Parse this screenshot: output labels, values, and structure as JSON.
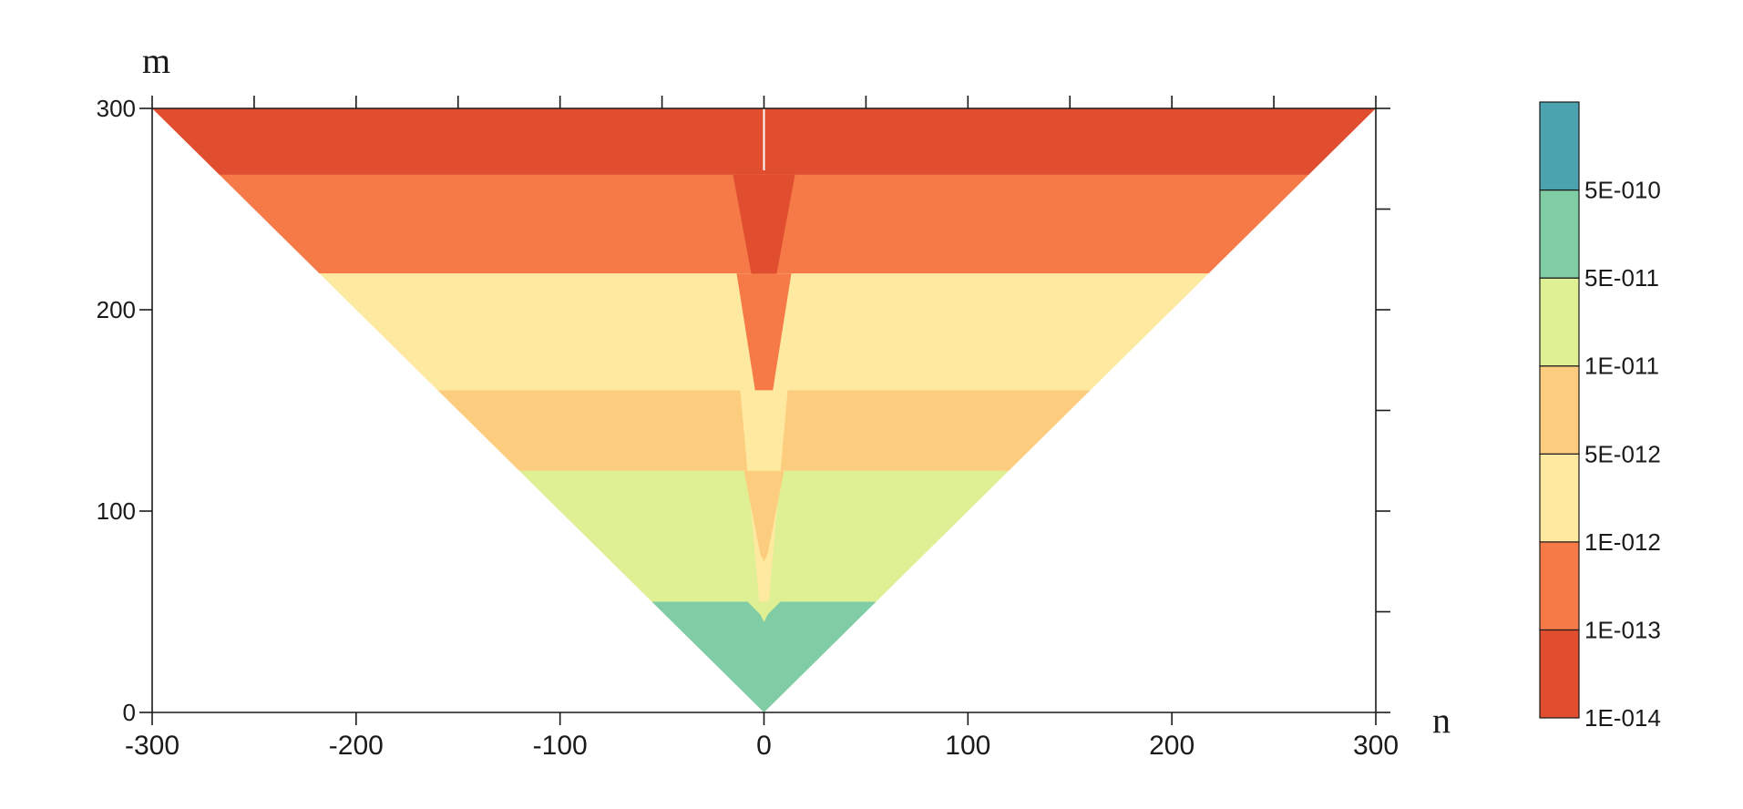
{
  "chart_data": {
    "type": "heatmap",
    "subtype": "filled-contour",
    "title": "",
    "xlabel": "n",
    "ylabel": "m",
    "xlim": [
      -300,
      300
    ],
    "ylim": [
      0,
      300
    ],
    "x_ticks": [
      -300,
      -200,
      -100,
      0,
      100,
      200,
      300
    ],
    "x_tick_labels": [
      "-300",
      "-200",
      "-100",
      "0",
      "100",
      "200",
      "300"
    ],
    "y_ticks": [
      0,
      100,
      200,
      300
    ],
    "y_tick_labels": [
      "0",
      "100",
      "200",
      "300"
    ],
    "domain": "triangle |n| <= m <= 300",
    "grid": false,
    "colorbar": {
      "position": "right",
      "labels": [
        "1E-014",
        "1E-013",
        "1E-012",
        "5E-012",
        "1E-011",
        "5E-011",
        "5E-010"
      ],
      "colors": [
        "#e04e2f",
        "#f57a48",
        "#fee9a0",
        "#fdcd7f",
        "#dff094",
        "#80cda5",
        "#4aa3ae"
      ]
    },
    "regions": [
      {
        "level": "1E-014",
        "color": "#e04e2f",
        "m_from": 267,
        "m_to": 300,
        "center_spike_to_m": 190
      },
      {
        "level": "1E-013",
        "color": "#f57a48",
        "m_from": 218,
        "m_to": 267,
        "center_spike_to_m": 140
      },
      {
        "level": "1E-012",
        "color": "#fee9a0",
        "m_from": 160,
        "m_to": 218,
        "center_spike_to_m": 45
      },
      {
        "level": "5E-012",
        "color": "#fdcd7f",
        "m_from": 120,
        "m_to": 160,
        "center_spike_to_m": 75
      },
      {
        "level": "1E-011",
        "color": "#dff094",
        "m_from": 55,
        "m_to": 120,
        "center_spike_to_m": 45
      },
      {
        "level": "5E-011",
        "color": "#80cda5",
        "m_from": 0,
        "m_to": 55
      }
    ]
  }
}
